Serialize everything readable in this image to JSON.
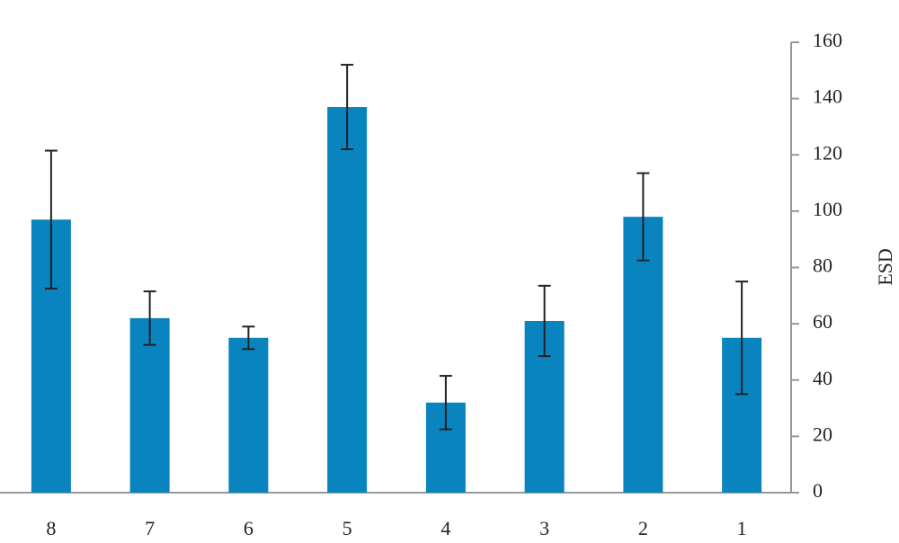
{
  "chart_data": {
    "type": "bar",
    "y_label": "ESD",
    "categories": [
      "8",
      "7",
      "6",
      "5",
      "4",
      "3",
      "2",
      "1"
    ],
    "values": [
      97,
      62,
      55,
      137,
      32,
      61,
      98,
      55
    ],
    "errors": [
      24.5,
      9.5,
      4,
      15,
      9.5,
      12.5,
      15.5,
      20
    ],
    "color": "#0a84bf",
    "ylim": [
      0,
      160
    ],
    "yticks": [
      0,
      20,
      40,
      60,
      80,
      100,
      120,
      140,
      160
    ]
  }
}
